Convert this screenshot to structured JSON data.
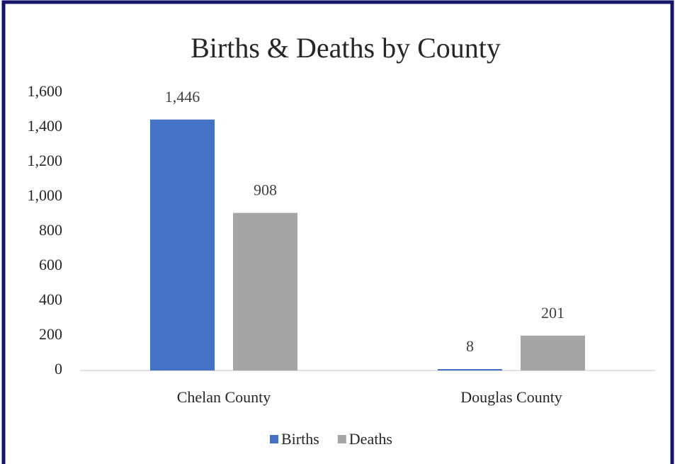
{
  "chart_data": {
    "type": "bar",
    "title": "Births & Deaths by County",
    "categories": [
      "Chelan County",
      "Douglas County"
    ],
    "series": [
      {
        "name": "Births",
        "color": "#4472c4",
        "values": [
          1446,
          8
        ],
        "value_labels": [
          "1,446",
          "8"
        ]
      },
      {
        "name": "Deaths",
        "color": "#a5a5a5",
        "values": [
          908,
          201
        ],
        "value_labels": [
          "908",
          "201"
        ]
      }
    ],
    "ylim": [
      0,
      1600
    ],
    "yticks": [
      0,
      200,
      400,
      600,
      800,
      {
        "value": 1000,
        "label": "1,000"
      },
      {
        "value": 1200,
        "label": "1,200"
      },
      {
        "value": 1400,
        "label": "1,400"
      },
      {
        "value": 1600,
        "label": "1,600"
      }
    ],
    "grid": false,
    "legend": "bottom"
  }
}
